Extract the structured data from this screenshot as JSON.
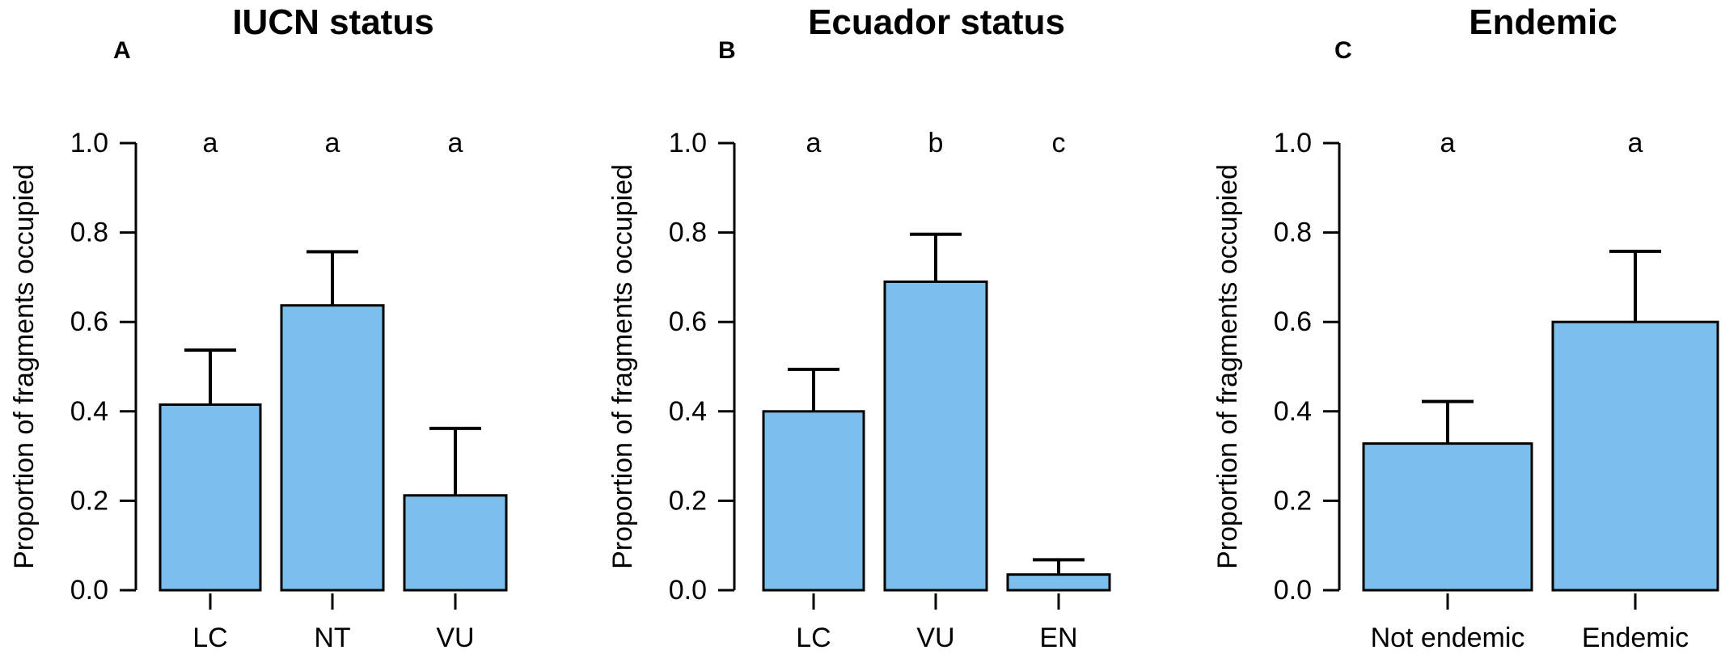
{
  "figure": {
    "bar_color": "#7dbfec",
    "edge_color": "#000000"
  },
  "chart_data": [
    {
      "type": "bar",
      "letter": "A",
      "title": "IUCN status",
      "ylabel": "Proportion of fragments occupied",
      "categories": [
        "LC",
        "NT",
        "VU"
      ],
      "values": [
        0.415,
        0.637,
        0.212
      ],
      "error_upper": [
        0.537,
        0.757,
        0.362
      ],
      "significance": [
        "a",
        "a",
        "a"
      ],
      "ylim": [
        0,
        1.0
      ],
      "yticks": [
        0.0,
        0.2,
        0.4,
        0.6,
        0.8,
        1.0
      ],
      "ytick_labels": [
        "0.0",
        "0.2",
        "0.4",
        "0.6",
        "0.8",
        "1.0"
      ],
      "grid": false
    },
    {
      "type": "bar",
      "letter": "B",
      "title": "Ecuador status",
      "ylabel": "Proportion of fragments occupied",
      "categories": [
        "LC",
        "VU",
        "EN"
      ],
      "values": [
        0.4,
        0.69,
        0.035
      ],
      "error_upper": [
        0.494,
        0.796,
        0.068
      ],
      "significance": [
        "a",
        "b",
        "c"
      ],
      "ylim": [
        0,
        1.0
      ],
      "yticks": [
        0.0,
        0.2,
        0.4,
        0.6,
        0.8,
        1.0
      ],
      "ytick_labels": [
        "0.0",
        "0.2",
        "0.4",
        "0.6",
        "0.8",
        "1.0"
      ],
      "grid": false
    },
    {
      "type": "bar",
      "letter": "C",
      "title": "Endemic",
      "ylabel": "Proportion of fragments occupied",
      "categories": [
        "Not endemic",
        "Endemic"
      ],
      "values": [
        0.328,
        0.6
      ],
      "error_upper": [
        0.422,
        0.758
      ],
      "significance": [
        "a",
        "a"
      ],
      "ylim": [
        0,
        1.0
      ],
      "yticks": [
        0.0,
        0.2,
        0.4,
        0.6,
        0.8,
        1.0
      ],
      "ytick_labels": [
        "0.0",
        "0.2",
        "0.4",
        "0.6",
        "0.8",
        "1.0"
      ],
      "grid": false
    }
  ]
}
